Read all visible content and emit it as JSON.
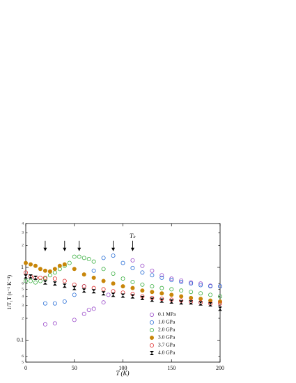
{
  "chart_data": {
    "type": "scatter",
    "xlabel": "T (K)",
    "ylabel": "1/T₁T (s⁻¹ K⁻¹)",
    "annotation": "Tₖ",
    "arrows": [
      20,
      40,
      55,
      90,
      110
    ],
    "arrow_level": 1.9,
    "xlim": [
      0,
      200
    ],
    "xticks": [
      0,
      50,
      100,
      150,
      200
    ],
    "ylim": [
      0.05,
      4
    ],
    "log_y": true,
    "yticks": [
      {
        "value": 0.05,
        "label": "5"
      },
      {
        "value": 0.06,
        "label": "6"
      },
      0.1,
      {
        "value": 0.2,
        "label": "2"
      },
      {
        "value": 0.3,
        "label": "3"
      },
      {
        "value": 0.4,
        "label": "4"
      },
      {
        "value": 0.5,
        "label": "5"
      },
      {
        "value": 0.6,
        "label": "6"
      },
      1,
      {
        "value": 2,
        "label": "2"
      },
      {
        "value": 3,
        "label": "3"
      },
      {
        "value": 4,
        "label": "4"
      }
    ],
    "legend": "lower right",
    "series": [
      {
        "name": "0.1 MPa",
        "color": "#9b4dca",
        "marker": "open",
        "x": [
          20,
          30,
          50,
          60,
          65,
          70,
          80,
          85,
          110,
          120,
          130,
          140,
          150,
          160,
          170,
          180,
          190,
          200
        ],
        "values": [
          0.165,
          0.17,
          0.19,
          0.23,
          0.26,
          0.27,
          0.33,
          0.42,
          1.25,
          1.05,
          0.9,
          0.78,
          0.7,
          0.66,
          0.62,
          0.6,
          0.56,
          0.55
        ]
      },
      {
        "name": "1.0 GPa",
        "color": "#2a6fd6",
        "marker": "open",
        "x": [
          20,
          30,
          40,
          50,
          60,
          70,
          80,
          90,
          100,
          110,
          120,
          130,
          140,
          150,
          160,
          170,
          180,
          190,
          200
        ],
        "values": [
          0.32,
          0.32,
          0.34,
          0.42,
          0.55,
          0.9,
          1.35,
          1.45,
          1.15,
          0.98,
          0.85,
          0.78,
          0.72,
          0.67,
          0.63,
          0.6,
          0.57,
          0.55,
          0.55
        ]
      },
      {
        "name": "2.0 GPa",
        "color": "#3cb043",
        "marker": "open",
        "x": [
          0,
          5,
          10,
          15,
          20,
          25,
          30,
          35,
          40,
          45,
          50,
          55,
          60,
          65,
          70,
          80,
          90,
          100,
          110,
          120,
          130,
          140,
          150,
          160,
          170,
          180,
          190,
          200
        ],
        "values": [
          0.65,
          0.65,
          0.62,
          0.65,
          0.7,
          0.78,
          0.85,
          0.95,
          1.05,
          1.15,
          1.4,
          1.4,
          1.35,
          1.3,
          1.2,
          0.95,
          0.82,
          0.7,
          0.63,
          0.58,
          0.55,
          0.52,
          0.5,
          0.48,
          0.46,
          0.44,
          0.42,
          0.4
        ]
      },
      {
        "name": "3.0 GPa",
        "color": "#c8860a",
        "marker": "filled",
        "x": [
          0,
          5,
          10,
          15,
          20,
          25,
          30,
          35,
          40,
          50,
          60,
          70,
          80,
          90,
          100,
          110,
          120,
          130,
          140,
          150,
          160,
          170,
          180,
          190,
          200
        ],
        "values": [
          1.15,
          1.1,
          1.05,
          0.95,
          0.9,
          0.88,
          0.95,
          1.05,
          1.1,
          0.95,
          0.8,
          0.72,
          0.65,
          0.6,
          0.55,
          0.52,
          0.48,
          0.46,
          0.44,
          0.42,
          0.4,
          0.38,
          0.37,
          0.35,
          0.34
        ]
      },
      {
        "name": "3.7 GPa",
        "color": "#e03030",
        "marker": "open",
        "x": [
          0,
          5,
          10,
          15,
          20,
          30,
          40,
          50,
          60,
          70,
          80,
          90,
          100,
          110,
          120,
          130,
          140,
          150,
          160,
          170,
          180,
          190,
          200
        ],
        "values": [
          0.85,
          0.75,
          0.72,
          0.72,
          0.72,
          0.7,
          0.65,
          0.58,
          0.55,
          0.52,
          0.5,
          0.47,
          0.45,
          0.43,
          0.4,
          0.38,
          0.37,
          0.36,
          0.35,
          0.34,
          0.33,
          0.32,
          0.32
        ]
      },
      {
        "name": "4.0 GPa",
        "color": "#000000",
        "marker": "bowtie",
        "x": [
          0,
          5,
          10,
          20,
          30,
          40,
          50,
          60,
          70,
          80,
          90,
          100,
          110,
          120,
          130,
          140,
          150,
          160,
          170,
          180,
          190,
          200
        ],
        "values": [
          0.75,
          0.75,
          0.72,
          0.62,
          0.6,
          0.56,
          0.52,
          0.48,
          0.47,
          0.44,
          0.42,
          0.41,
          0.4,
          0.38,
          0.36,
          0.35,
          0.34,
          0.33,
          0.33,
          0.32,
          0.31,
          0.27
        ]
      }
    ]
  }
}
